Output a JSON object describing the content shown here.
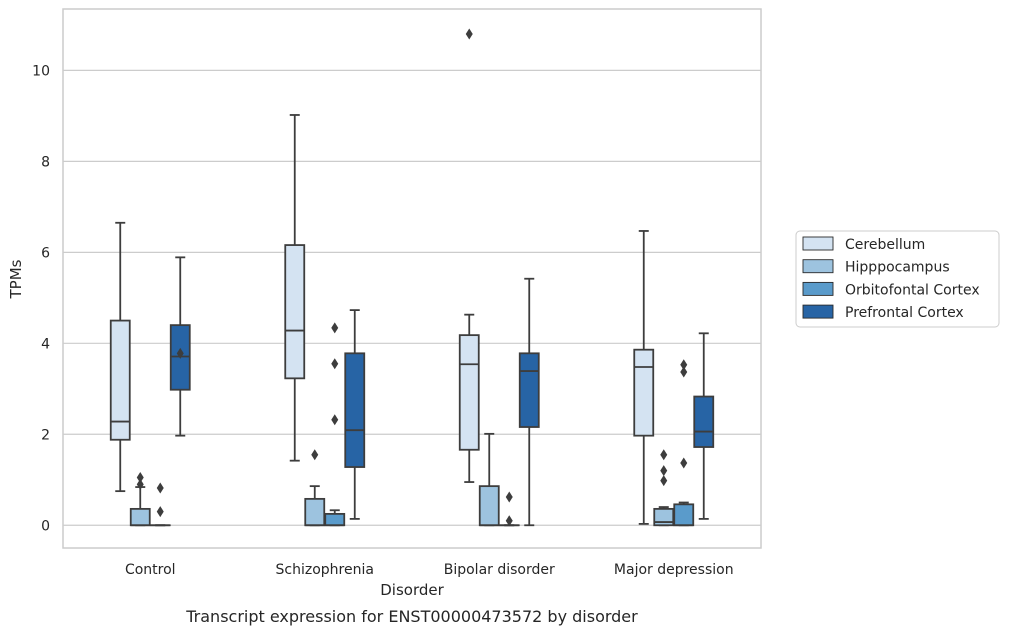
{
  "chart_data": {
    "type": "box",
    "caption": "Transcript expression for ENST00000473572 by disorder",
    "xlabel": "Disorder",
    "ylabel": "TPMs",
    "ylim": [
      -0.5,
      11.35
    ],
    "yticks": [
      0,
      2,
      4,
      6,
      8,
      10
    ],
    "grid": "horizontal",
    "legend_placement": "right",
    "categories": [
      "Control",
      "Schizophrenia",
      "Bipolar disorder",
      "Major depression"
    ],
    "series": [
      {
        "name": "Cerebellum",
        "color": "#d4e3f2",
        "boxes": [
          {
            "whisker_low": 0.75,
            "q1": 1.88,
            "median": 2.28,
            "q3": 4.5,
            "whisker_high": 6.65,
            "outliers": []
          },
          {
            "whisker_low": 1.42,
            "q1": 3.23,
            "median": 4.28,
            "q3": 6.16,
            "whisker_high": 9.02,
            "outliers": []
          },
          {
            "whisker_low": 0.95,
            "q1": 1.66,
            "median": 3.54,
            "q3": 4.18,
            "whisker_high": 4.63,
            "outliers": [
              10.8
            ]
          },
          {
            "whisker_low": 0.03,
            "q1": 1.97,
            "median": 3.48,
            "q3": 3.86,
            "whisker_high": 6.47,
            "outliers": []
          }
        ]
      },
      {
        "name": "Hipppocampus",
        "color": "#9dc3df",
        "boxes": [
          {
            "whisker_low": 0.0,
            "q1": 0.0,
            "median": 0.0,
            "q3": 0.36,
            "whisker_high": 0.84,
            "outliers": [
              0.9,
              1.05
            ]
          },
          {
            "whisker_low": 0.0,
            "q1": 0.0,
            "median": 0.0,
            "q3": 0.58,
            "whisker_high": 0.86,
            "outliers": [
              1.55
            ]
          },
          {
            "whisker_low": 0.0,
            "q1": 0.0,
            "median": 0.0,
            "q3": 0.86,
            "whisker_high": 2.01,
            "outliers": []
          },
          {
            "whisker_low": 0.0,
            "q1": 0.0,
            "median": 0.07,
            "q3": 0.36,
            "whisker_high": 0.4,
            "outliers": [
              0.98,
              1.2,
              1.55
            ]
          }
        ]
      },
      {
        "name": "Orbitofontal Cortex",
        "color": "#5a9bcb",
        "boxes": [
          {
            "whisker_low": 0.0,
            "q1": 0.0,
            "median": 0.0,
            "q3": 0.0,
            "whisker_high": 0.0,
            "outliers": [
              0.3,
              0.82
            ]
          },
          {
            "whisker_low": 0.0,
            "q1": 0.0,
            "median": 0.0,
            "q3": 0.25,
            "whisker_high": 0.33,
            "outliers": [
              2.32,
              3.55,
              4.34
            ]
          },
          {
            "whisker_low": 0.0,
            "q1": 0.0,
            "median": 0.0,
            "q3": 0.0,
            "whisker_high": 0.0,
            "outliers": [
              0.1,
              0.62
            ]
          },
          {
            "whisker_low": 0.0,
            "q1": 0.0,
            "median": 0.0,
            "q3": 0.46,
            "whisker_high": 0.5,
            "outliers": [
              1.37,
              3.37,
              3.53
            ]
          }
        ]
      },
      {
        "name": "Prefrontal Cortex",
        "color": "#2764a5",
        "boxes": [
          {
            "whisker_low": 1.97,
            "q1": 2.98,
            "median": 3.71,
            "q3": 4.4,
            "whisker_high": 5.89,
            "outliers": [
              3.78
            ]
          },
          {
            "whisker_low": 0.14,
            "q1": 1.28,
            "median": 2.09,
            "q3": 3.78,
            "whisker_high": 4.73,
            "outliers": []
          },
          {
            "whisker_low": 0.0,
            "q1": 2.16,
            "median": 3.39,
            "q3": 3.78,
            "whisker_high": 5.42,
            "outliers": []
          },
          {
            "whisker_low": 0.14,
            "q1": 1.72,
            "median": 2.06,
            "q3": 2.83,
            "whisker_high": 4.22,
            "outliers": []
          }
        ]
      }
    ]
  }
}
